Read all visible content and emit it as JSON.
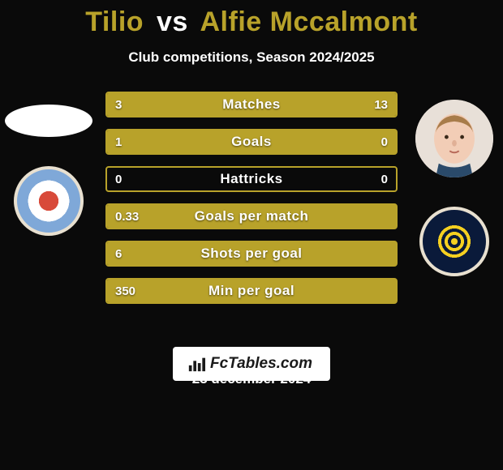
{
  "title": {
    "player1": "Tilio",
    "vs": "vs",
    "player2": "Alfie Mccalmont",
    "color_player": "#b8a22a",
    "color_vs": "#ffffff",
    "fontsize": 34
  },
  "subtitle": "Club competitions, Season 2024/2025",
  "club1_colors": {
    "inner": "#d84a3a",
    "mid": "#ffffff",
    "outer": "#7fa8d8"
  },
  "club2_colors": {
    "bg": "#0a1a3a",
    "swirl": "#f5d020"
  },
  "bars": {
    "accent_color": "#b8a22a",
    "border_color": "#b8a22a",
    "text_color": "#ffffff",
    "label_fontsize": 17,
    "value_fontsize": 15,
    "rows": [
      {
        "label": "Matches",
        "left_val": "3",
        "right_val": "13",
        "left_pct": 18.75,
        "right_pct": 81.25
      },
      {
        "label": "Goals",
        "left_val": "1",
        "right_val": "0",
        "left_pct": 100,
        "right_pct": 0
      },
      {
        "label": "Hattricks",
        "left_val": "0",
        "right_val": "0",
        "left_pct": 0,
        "right_pct": 0
      },
      {
        "label": "Goals per match",
        "left_val": "0.33",
        "right_val": "",
        "left_pct": 100,
        "right_pct": 0
      },
      {
        "label": "Shots per goal",
        "left_val": "6",
        "right_val": "",
        "left_pct": 100,
        "right_pct": 0
      },
      {
        "label": "Min per goal",
        "left_val": "350",
        "right_val": "",
        "left_pct": 100,
        "right_pct": 0
      }
    ]
  },
  "watermark": "FcTables.com",
  "date": "23 december 2024",
  "background_color": "#0a0a0a"
}
